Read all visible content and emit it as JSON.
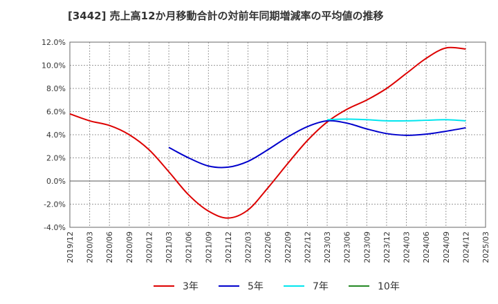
{
  "chart_data": {
    "type": "line",
    "title": "[3442]  売上高12か月移動合計の対前年同期増減率の平均値の推移",
    "xlabel": "",
    "ylabel": "",
    "x_ticks": [
      "2019/12",
      "2020/03",
      "2020/06",
      "2020/09",
      "2020/12",
      "2021/03",
      "2021/06",
      "2021/09",
      "2021/12",
      "2022/03",
      "2022/06",
      "2022/09",
      "2022/12",
      "2023/03",
      "2023/06",
      "2023/09",
      "2023/12",
      "2024/03",
      "2024/06",
      "2024/09",
      "2024/12",
      "2025/03"
    ],
    "y_ticks": [
      "12.0%",
      "10.0%",
      "8.0%",
      "6.0%",
      "4.0%",
      "2.0%",
      "0.0%",
      "-2.0%",
      "-4.0%"
    ],
    "ylim": [
      -4,
      12
    ],
    "grid": true,
    "legend_position": "bottom",
    "series": [
      {
        "name": "3年",
        "color": "#dd0000",
        "x": [
          "2019/12",
          "2020/03",
          "2020/06",
          "2020/09",
          "2020/12",
          "2021/03",
          "2021/06",
          "2021/09",
          "2021/12",
          "2022/03",
          "2022/06",
          "2022/09",
          "2022/12",
          "2023/03",
          "2023/06",
          "2023/09",
          "2023/12",
          "2024/03",
          "2024/06",
          "2024/09",
          "2024/12"
        ],
        "values": [
          5.8,
          5.2,
          4.8,
          4.0,
          2.7,
          0.8,
          -1.2,
          -2.6,
          -3.2,
          -2.5,
          -0.6,
          1.5,
          3.5,
          5.1,
          6.2,
          7.0,
          8.0,
          9.3,
          10.6,
          11.5,
          11.4
        ]
      },
      {
        "name": "5年",
        "color": "#0000cc",
        "x": [
          "2021/03",
          "2021/06",
          "2021/09",
          "2021/12",
          "2022/03",
          "2022/06",
          "2022/09",
          "2022/12",
          "2023/03",
          "2023/06",
          "2023/09",
          "2023/12",
          "2024/03",
          "2024/06",
          "2024/09",
          "2024/12"
        ],
        "values": [
          2.9,
          2.0,
          1.3,
          1.2,
          1.7,
          2.7,
          3.8,
          4.7,
          5.2,
          5.0,
          4.5,
          4.1,
          3.95,
          4.05,
          4.3,
          4.6
        ]
      },
      {
        "name": "7年",
        "color": "#00e5ee",
        "x": [
          "2023/03",
          "2023/06",
          "2023/09",
          "2023/12",
          "2024/03",
          "2024/06",
          "2024/09",
          "2024/12"
        ],
        "values": [
          5.3,
          5.35,
          5.3,
          5.2,
          5.2,
          5.25,
          5.3,
          5.2
        ]
      },
      {
        "name": "10年",
        "color": "#228822",
        "x": [],
        "values": []
      }
    ]
  }
}
